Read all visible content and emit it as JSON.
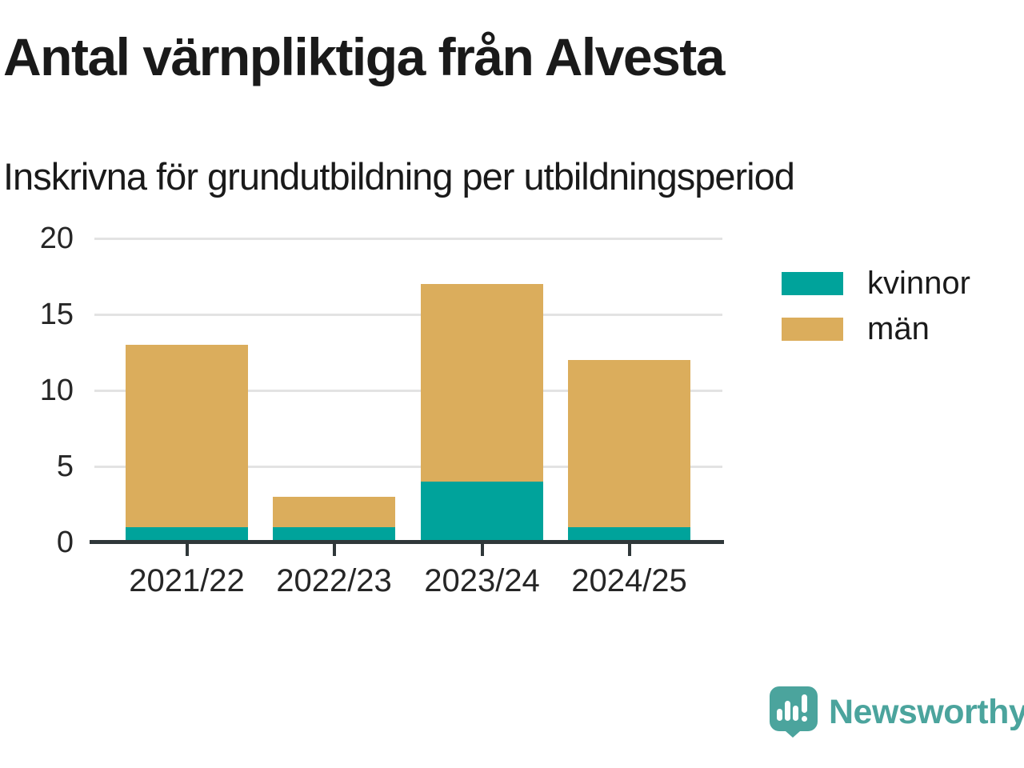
{
  "header": {
    "title": "Antal värnpliktiga från Alvesta",
    "subtitle": "Inskrivna för grundutbildning per utbildningsperiod"
  },
  "chart_data": {
    "type": "bar",
    "stacked": true,
    "title": "Antal värnpliktiga från Alvesta",
    "subtitle": "Inskrivna för grundutbildning per utbildningsperiod",
    "categories": [
      "2021/22",
      "2022/23",
      "2023/24",
      "2024/25"
    ],
    "series": [
      {
        "name": "kvinnor",
        "color": "#00A39B",
        "values": [
          1,
          1,
          4,
          1
        ]
      },
      {
        "name": "män",
        "color": "#DBAD5C",
        "values": [
          12,
          2,
          13,
          11
        ]
      }
    ],
    "totals": [
      13,
      3,
      17,
      12
    ],
    "xlabel": "",
    "ylabel": "",
    "ylim": [
      0,
      20
    ],
    "yticks": [
      0,
      5,
      10,
      15,
      20
    ],
    "grid": "horizontal-only",
    "legend_position": "right"
  },
  "branding": {
    "logo_text": "Newsworthy",
    "logo_color": "#4BA49D",
    "logo_icon": "bar-chart-speech-bubble"
  },
  "colors": {
    "kvinnor_teal": "#00A39B",
    "man_gold": "#DBAD5C",
    "axis": "#30383A",
    "gridline": "#E3E3E3",
    "text": "#1A1A1A"
  }
}
